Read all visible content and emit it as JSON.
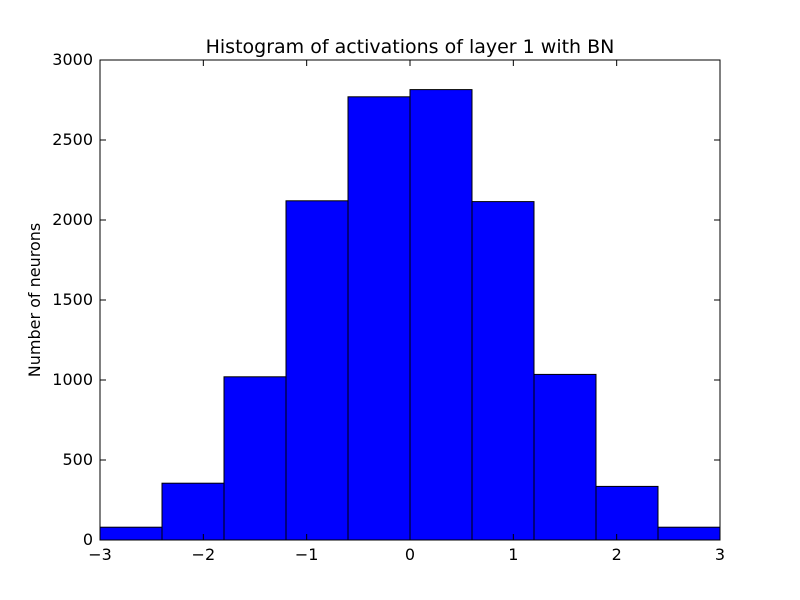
{
  "chart_data": {
    "type": "bar",
    "title": "Histogram of activations of layer 1  with BN",
    "xlabel": "",
    "ylabel": "Number of neurons",
    "bin_edges": [
      -3,
      -2.4,
      -1.8,
      -1.2,
      -0.6,
      0,
      0.6,
      1.2,
      1.8,
      2.4,
      3
    ],
    "values": [
      80,
      355,
      1020,
      2120,
      2770,
      2815,
      2115,
      1035,
      335,
      80
    ],
    "xlim": [
      -3,
      3
    ],
    "ylim": [
      0,
      3000
    ],
    "xticks": [
      -3,
      -2,
      -1,
      0,
      1,
      2,
      3
    ],
    "xtick_labels": [
      "−3",
      "−2",
      "−1",
      "0",
      "1",
      "2",
      "3"
    ],
    "yticks": [
      0,
      500,
      1000,
      1500,
      2000,
      2500,
      3000
    ],
    "ytick_labels": [
      "0",
      "500",
      "1000",
      "1500",
      "2000",
      "2500",
      "3000"
    ],
    "grid": false,
    "legend": "none",
    "colors": {
      "bar_fill": "#0000ff",
      "bar_edge": "#000000",
      "axes": "#000000"
    }
  }
}
